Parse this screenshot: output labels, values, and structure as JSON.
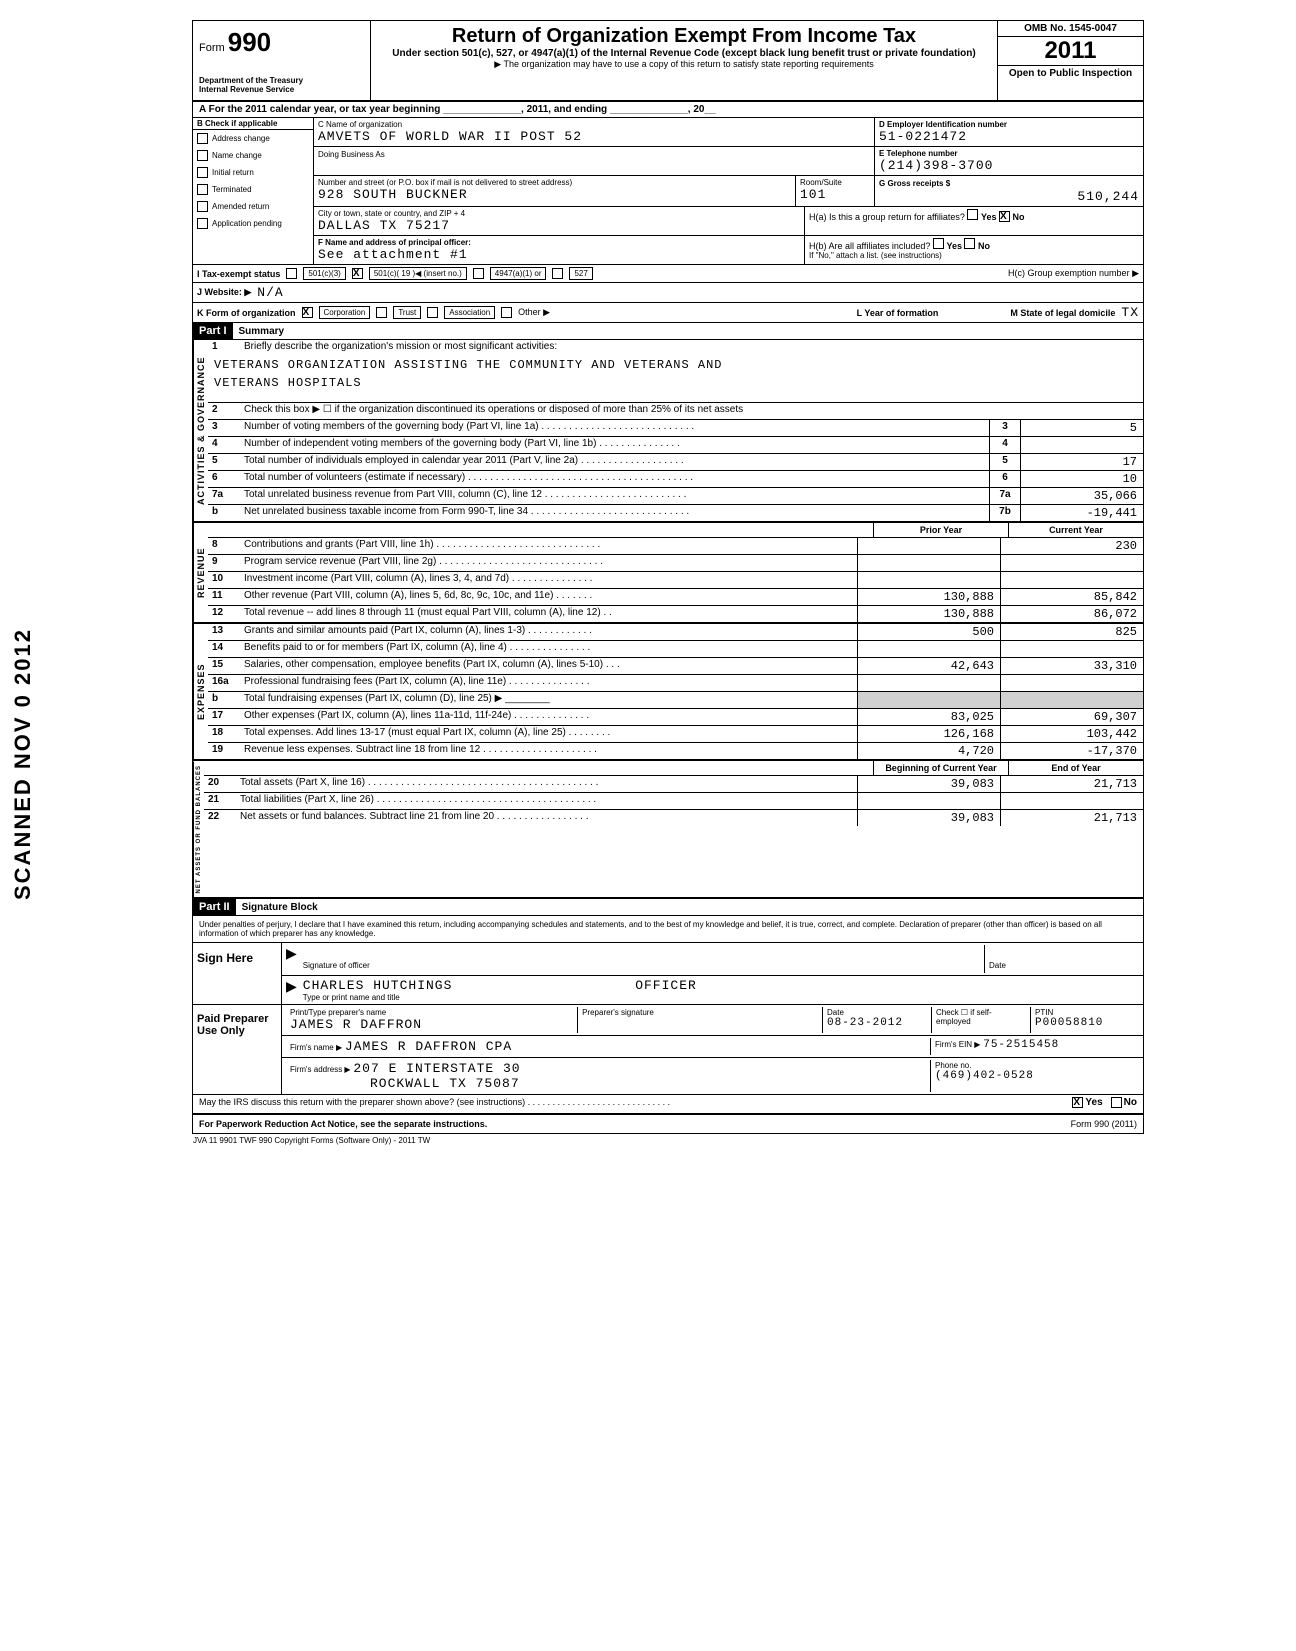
{
  "form": {
    "number_prefix": "Form",
    "number": "990",
    "dept1": "Department of the Treasury",
    "dept2": "Internal Revenue Service",
    "title": "Return of Organization Exempt From Income Tax",
    "subtitle": "Under section 501(c), 527, or 4947(a)(1) of the Internal Revenue Code (except black lung benefit trust or private foundation)",
    "note": "▶ The organization may have to use a copy of this return to satisfy state reporting requirements",
    "omb": "OMB No. 1545-0047",
    "year": "2011",
    "open": "Open to Public Inspection"
  },
  "rowA": "A   For the 2011 calendar year, or tax year beginning ______________, 2011, and ending ______________, 20__",
  "colB": {
    "header": "B  Check if applicable",
    "items": [
      "Address change",
      "Name change",
      "Initial return",
      "Terminated",
      "Amended return",
      "Application pending"
    ]
  },
  "colC": {
    "name_label": "C Name of organization",
    "name": "AMVETS OF WORLD WAR II POST 52",
    "dba_label": "Doing Business As",
    "dba": "",
    "addr_label": "Number and street (or P.O. box if mail is not delivered to street address)",
    "addr": "928 SOUTH BUCKNER",
    "room_label": "Room/Suite",
    "room": "101",
    "city_label": "City or town, state or country, and ZIP + 4",
    "city": "DALLAS TX 75217",
    "officer_label": "F   Name and address of principal officer:",
    "officer": "See attachment #1"
  },
  "colD": {
    "ein_label": "D Employer Identification number",
    "ein": "51-0221472",
    "phone_label": "E Telephone number",
    "phone": "(214)398-3700",
    "gross_label": "G Gross receipts $",
    "gross": "510,244",
    "ha_label": "H(a)  Is this a group return for affiliates?",
    "hb_label": "H(b)  Are all affiliates included?",
    "hb_note": "If \"No,\" attach a list. (see instructions)",
    "hc_label": "H(c)  Group exemption number ▶"
  },
  "status": {
    "label": "I   Tax-exempt status",
    "c3": "501(c)(3)",
    "c_insert": "501(c)( 19 )◀ (insert no.)",
    "a1": "4947(a)(1) or",
    "527": "527"
  },
  "website": {
    "label": "J   Website: ▶",
    "value": "N/A"
  },
  "orgform": {
    "label": "K  Form of organization",
    "corp": "Corporation",
    "trust": "Trust",
    "assoc": "Association",
    "other": "Other ▶",
    "year_label": "L Year of formation",
    "state_label": "M State of legal domicile",
    "state": "TX"
  },
  "part1": {
    "header": "Part I",
    "title": "Summary"
  },
  "gov": {
    "label": "ACTIVITIES & GOVERNANCE",
    "l1": "Briefly describe the organization's mission or most significant activities:",
    "mission1": "VETERANS ORGANIZATION ASSISTING THE COMMUNITY AND VETERANS AND",
    "mission2": "VETERANS HOSPITALS",
    "l2": "Check this box ▶ ☐ if the organization discontinued its operations or disposed of more than 25% of its net assets",
    "l3": "Number of voting members of the governing body (Part VI, line 1a) . . . . . . . . . . . . . . . . . . . . . . . . . . . .",
    "l4": "Number of independent voting members of the governing body (Part VI, line 1b) . . . . . . . . . . . . . . .",
    "l5": "Total number of individuals employed in calendar year 2011 (Part V, line 2a) . . . . . . . . . . . . . . . . . . .",
    "l6": "Total number of volunteers (estimate if necessary) . . . . . . . . . . . . . . . . . . . . . . . . . . . . . . . . . . . . . . . . .",
    "l7a": "Total unrelated business revenue from Part VIII, column (C), line 12 . . . . . . . . . . . . . . . . . . . . . . . . . .",
    "l7b": "Net unrelated business taxable income from Form 990-T, line 34 . . . . . . . . . . . . . . . . . . . . . . . . . . . . .",
    "v3": "5",
    "v4": "",
    "v5": "17",
    "v6": "10",
    "v7a": "35,066",
    "v7b": "-19,441"
  },
  "rev": {
    "label": "REVENUE",
    "prior_header": "Prior Year",
    "current_header": "Current Year",
    "rows": [
      {
        "n": "8",
        "t": "Contributions and grants (Part VIII, line 1h) . . . . . . . . . . . . . . . . . . . . . . . . . . . . . .",
        "p": "",
        "c": "230"
      },
      {
        "n": "9",
        "t": "Program service revenue (Part VIII, line 2g) . . . . . . . . . . . . . . . . . . . . . . . . . . . . . .",
        "p": "",
        "c": ""
      },
      {
        "n": "10",
        "t": "Investment income (Part VIII, column (A), lines 3, 4, and 7d) . . . . . . . . . . . . . . .",
        "p": "",
        "c": ""
      },
      {
        "n": "11",
        "t": "Other revenue (Part VIII, column (A), lines 5, 6d, 8c, 9c, 10c, and 11e) . . . . . . .",
        "p": "130,888",
        "c": "85,842"
      },
      {
        "n": "12",
        "t": "Total revenue -- add lines 8 through 11 (must equal Part VIII, column (A), line 12) . .",
        "p": "130,888",
        "c": "86,072"
      }
    ]
  },
  "exp": {
    "label": "EXPENSES",
    "rows": [
      {
        "n": "13",
        "t": "Grants and similar amounts paid (Part IX, column (A), lines 1-3) . . . . . . . . . . . .",
        "p": "500",
        "c": "825"
      },
      {
        "n": "14",
        "t": "Benefits paid to or for members (Part IX, column (A), line 4) . . . . . . . . . . . . . . .",
        "p": "",
        "c": ""
      },
      {
        "n": "15",
        "t": "Salaries, other compensation, employee benefits (Part IX, column (A), lines 5-10) . . .",
        "p": "42,643",
        "c": "33,310"
      },
      {
        "n": "16a",
        "t": "Professional fundraising fees (Part IX, column (A), line 11e) . . . . . . . . . . . . . . .",
        "p": "",
        "c": ""
      },
      {
        "n": "b",
        "t": "Total fundraising expenses (Part IX, column (D), line 25) ▶ ________",
        "p": "gray",
        "c": "gray"
      },
      {
        "n": "17",
        "t": "Other expenses (Part IX, column (A), lines 11a-11d, 11f-24e) . . . . . . . . . . . . . .",
        "p": "83,025",
        "c": "69,307"
      },
      {
        "n": "18",
        "t": "Total expenses. Add lines 13-17 (must equal Part IX, column (A), line 25) . . . . . . . .",
        "p": "126,168",
        "c": "103,442"
      },
      {
        "n": "19",
        "t": "Revenue less expenses. Subtract line 18 from line 12 . . . . . . . . . . . . . . . . . . . . .",
        "p": "4,720",
        "c": "-17,370"
      }
    ]
  },
  "net": {
    "label": "NET ASSETS OR FUND BALANCES",
    "begin_header": "Beginning of Current Year",
    "end_header": "End of Year",
    "rows": [
      {
        "n": "20",
        "t": "Total assets (Part X, line 16) . . . . . . . . . . . . . . . . . . . . . . . . . . . . . . . . . . . . . . . . . .",
        "p": "39,083",
        "c": "21,713"
      },
      {
        "n": "21",
        "t": "Total liabilities (Part X, line 26) . . . . . . . . . . . . . . . . . . . . . . . . . . . . . . . . . . . . . . . .",
        "p": "",
        "c": ""
      },
      {
        "n": "22",
        "t": "Net assets or fund balances. Subtract line 21 from line 20 . . . . . . . . . . . . . . . . .",
        "p": "39,083",
        "c": "21,713"
      }
    ]
  },
  "part2": {
    "header": "Part II",
    "title": "Signature Block"
  },
  "sig": {
    "perjury": "Under penalties of perjury, I declare that I have examined this return, including accompanying schedules and statements, and to the best of my knowledge and belief, it is true, correct, and complete. Declaration of preparer (other than officer) is based on all information of which preparer has any knowledge.",
    "sign_here": "Sign Here",
    "sig_label": "Signature of officer",
    "date_label": "Date",
    "name": "CHARLES HUTCHINGS",
    "title": "OFFICER",
    "type_label": "Type or print name and title"
  },
  "preparer": {
    "label": "Paid Preparer Use Only",
    "name_label": "Print/Type preparer's name",
    "name": "JAMES R DAFFRON",
    "sig_label": "Preparer's signature",
    "date_label": "Date",
    "date": "08-23-2012",
    "check_label": "Check ☐ if self-employed",
    "ptin_label": "PTIN",
    "ptin": "P00058810",
    "firm_label": "Firm's name ▶",
    "firm": "JAMES R DAFFRON CPA",
    "ein_label": "Firm's EIN ▶",
    "ein": "75-2515458",
    "addr_label": "Firm's address ▶",
    "addr1": "207 E INTERSTATE 30",
    "addr2": "ROCKWALL TX 75087",
    "phone_label": "Phone no.",
    "phone": "(469)402-0528"
  },
  "footer": {
    "discuss": "May the IRS discuss this return with the preparer shown above? (see instructions) . . . . . . . . . . . . . . . . . . . . . . . . . . . . .",
    "yes": "Yes",
    "no": "No",
    "paperwork": "For Paperwork Reduction Act Notice, see the separate instructions.",
    "form": "Form 990 (2011)",
    "jva": "JVA     11  9901      TWF 990      Copyright Forms (Software Only) - 2011 TW"
  },
  "stamp": "SCANNED NOV 0  2012"
}
